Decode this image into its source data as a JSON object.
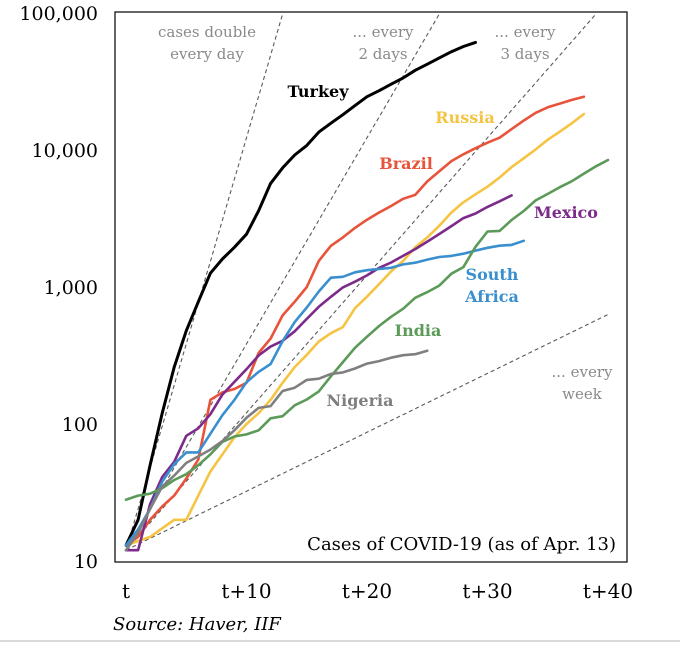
{
  "chart_data": {
    "type": "line",
    "y_scale": "log",
    "ylim": [
      10,
      100000
    ],
    "xlim": [
      0,
      40
    ],
    "y_ticks": [
      {
        "value": 10,
        "label": "10"
      },
      {
        "value": 100,
        "label": "100"
      },
      {
        "value": 1000,
        "label": "1,000"
      },
      {
        "value": 10000,
        "label": "10,000"
      },
      {
        "value": 100000,
        "label": "100,000"
      }
    ],
    "x_ticks": [
      {
        "value": 0,
        "label": "t"
      },
      {
        "value": 10,
        "label": "t+10"
      },
      {
        "value": 20,
        "label": "t+20"
      },
      {
        "value": 30,
        "label": "t+30"
      },
      {
        "value": 40,
        "label": "t+40"
      }
    ],
    "annotation": "Cases of COVID-19 (as of Apr. 13)",
    "source": "Source: Haver, IIF",
    "reference_lines": [
      {
        "doubling_days": 1,
        "label": [
          "cases double",
          "every day"
        ]
      },
      {
        "doubling_days": 2,
        "label": [
          "... every",
          "2 days"
        ]
      },
      {
        "doubling_days": 3,
        "label": [
          "... every",
          "3 days"
        ]
      },
      {
        "doubling_days": 7,
        "label": [
          "... every",
          "week"
        ]
      }
    ],
    "series": [
      {
        "name": "Turkey",
        "color": "#000000",
        "label_lines": [
          "Turkey"
        ],
        "x": [
          0,
          1,
          2,
          3,
          4,
          5,
          6,
          7,
          8,
          9,
          10,
          11,
          12,
          13,
          14,
          15,
          16,
          17,
          18,
          19,
          20,
          21,
          22,
          23,
          24,
          25,
          26,
          27,
          28,
          29
        ],
        "y": [
          13,
          20,
          50,
          120,
          260,
          480,
          780,
          1260,
          1600,
          1950,
          2430,
          3600,
          5700,
          7400,
          9200,
          10800,
          13500,
          15700,
          18100,
          21100,
          24500,
          27100,
          30200,
          33600,
          38200,
          42300,
          47000,
          52200,
          56900,
          61000
        ]
      },
      {
        "name": "Russia",
        "color": "#f6c443",
        "label_lines": [
          "Russia"
        ],
        "x": [
          0,
          2,
          4,
          5,
          6,
          7,
          8,
          9,
          10,
          11,
          12,
          13,
          14,
          15,
          16,
          17,
          18,
          19,
          20,
          21,
          22,
          23,
          24,
          25,
          26,
          27,
          28,
          29,
          30,
          31,
          32,
          33,
          34,
          35,
          36,
          37,
          38
        ],
        "y": [
          13,
          15,
          20,
          20,
          30,
          45,
          60,
          80,
          100,
          120,
          150,
          200,
          260,
          320,
          400,
          460,
          510,
          700,
          850,
          1050,
          1300,
          1550,
          1950,
          2300,
          2800,
          3500,
          4150,
          4750,
          5400,
          6300,
          7500,
          8700,
          10100,
          11900,
          13600,
          15700,
          18300
        ]
      },
      {
        "name": "Brazil",
        "color": "#e8533b",
        "label_lines": [
          "Brazil"
        ],
        "x": [
          0,
          1,
          2,
          3,
          4,
          5,
          6,
          7,
          8,
          9,
          10,
          11,
          12,
          13,
          14,
          15,
          16,
          17,
          18,
          19,
          20,
          21,
          22,
          23,
          24,
          25,
          26,
          27,
          28,
          29,
          30,
          31,
          32,
          33,
          34,
          35,
          36,
          37,
          38
        ],
        "y": [
          13,
          15,
          20,
          25,
          30,
          40,
          55,
          150,
          170,
          180,
          200,
          330,
          420,
          620,
          780,
          1000,
          1550,
          2000,
          2300,
          2700,
          3100,
          3500,
          3900,
          4400,
          4700,
          5900,
          7000,
          8300,
          9300,
          10300,
          11300,
          12300,
          14200,
          16400,
          18700,
          20500,
          21800,
          23200,
          24500
        ]
      },
      {
        "name": "Mexico",
        "color": "#7d2b8b",
        "label_lines": [
          "Mexico"
        ],
        "x": [
          0,
          1,
          2,
          3,
          4,
          5,
          6,
          7,
          8,
          9,
          10,
          11,
          12,
          13,
          14,
          15,
          16,
          17,
          18,
          19,
          20,
          21,
          22,
          23,
          24,
          25,
          26,
          27,
          28,
          29,
          30,
          31,
          32
        ],
        "y": [
          12,
          12,
          26,
          41,
          53,
          82,
          93,
          118,
          164,
          203,
          251,
          316,
          367,
          405,
          475,
          585,
          717,
          848,
          993,
          1094,
          1215,
          1378,
          1510,
          1688,
          1890,
          2143,
          2439,
          2785,
          3181,
          3441,
          3844,
          4219,
          4661
        ]
      },
      {
        "name": "South Africa",
        "color": "#3a8fcf",
        "label_lines": [
          "South",
          "Africa"
        ],
        "x": [
          0,
          1,
          2,
          3,
          4,
          5,
          6,
          7,
          8,
          9,
          10,
          11,
          12,
          13,
          14,
          15,
          16,
          17,
          18,
          19,
          20,
          21,
          22,
          23,
          24,
          25,
          26,
          27,
          28,
          29,
          30,
          31,
          32,
          33
        ],
        "y": [
          13,
          17,
          24,
          38,
          51,
          62,
          62,
          85,
          116,
          150,
          202,
          240,
          274,
          402,
          554,
          709,
          927,
          1170,
          1187,
          1280,
          1326,
          1353,
          1380,
          1462,
          1505,
          1585,
          1655,
          1686,
          1749,
          1845,
          1934,
          2003,
          2028,
          2173
        ]
      },
      {
        "name": "India",
        "color": "#5b9a58",
        "label_lines": [
          "India"
        ],
        "x": [
          0,
          1,
          2,
          3,
          4,
          5,
          6,
          7,
          8,
          9,
          10,
          11,
          12,
          13,
          14,
          15,
          16,
          17,
          18,
          19,
          20,
          21,
          22,
          23,
          24,
          25,
          26,
          27,
          28,
          29,
          30,
          31,
          32,
          33,
          34,
          35,
          36,
          37,
          38,
          39,
          40
        ],
        "y": [
          28,
          30,
          31,
          34,
          39,
          43,
          50,
          60,
          74,
          81,
          84,
          90,
          110,
          114,
          137,
          151,
          173,
          223,
          283,
          360,
          434,
          519,
          606,
          694,
          834,
          918,
          1024,
          1251,
          1397,
          1965,
          2543,
          2567,
          3082,
          3588,
          4289,
          4778,
          5351,
          5916,
          6725,
          7600,
          8446
        ]
      },
      {
        "name": "Nigeria",
        "color": "#7f7f7f",
        "label_lines": [
          "Nigeria"
        ],
        "x": [
          0,
          1,
          2,
          3,
          4,
          5,
          6,
          7,
          8,
          9,
          10,
          11,
          12,
          13,
          14,
          15,
          16,
          17,
          18,
          19,
          20,
          21,
          22,
          23,
          24,
          25
        ],
        "y": [
          12,
          16,
          24,
          35,
          42,
          52,
          58,
          65,
          75,
          90,
          111,
          131,
          135,
          174,
          184,
          210,
          214,
          232,
          238,
          254,
          276,
          288,
          305,
          318,
          323,
          343
        ]
      }
    ]
  }
}
